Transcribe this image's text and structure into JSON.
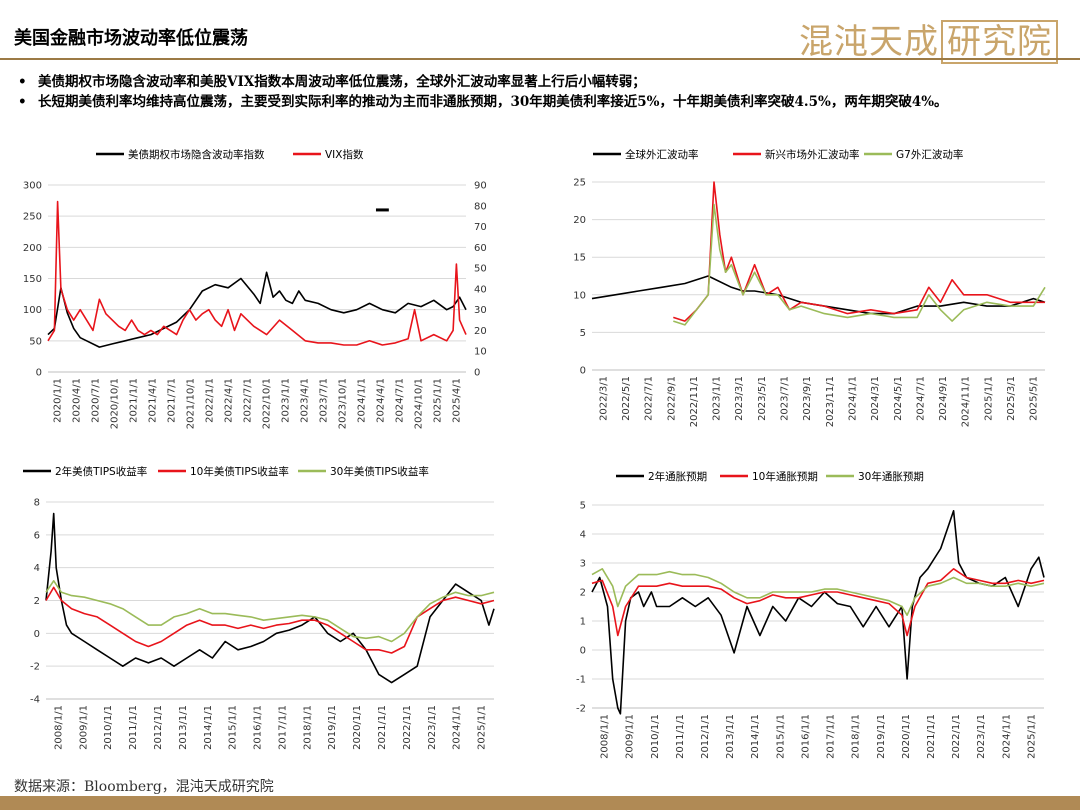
{
  "header": {
    "title": "美国金融市场波动率低位震荡",
    "logo_text": "混沌天成",
    "logo_box_text": "研究院"
  },
  "bullets": [
    "美债期权市场隐含波动率和美股VIX指数本周波动率低位震荡，全球外汇波动率显著上行后小幅转弱；",
    "长短期美债利率均维持高位震荡，主要受到实际利率的推动为主而非通胀预期，30年期美债利率接近5%，十年期美债利率突破4.5%，两年期突破4%。"
  ],
  "source": "数据来源：Bloomberg，混沌天成研究院",
  "colors": {
    "black": "#000000",
    "red": "#e8141b",
    "green": "#9bbb59",
    "gold": "#b08a55"
  },
  "chart_data": [
    {
      "type": "line",
      "id": "vol",
      "x_ticks": [
        "2020/1/1",
        "2020/4/1",
        "2020/7/1",
        "2020/10/1",
        "2021/1/1",
        "2021/4/1",
        "2021/7/1",
        "2021/10/1",
        "2022/1/1",
        "2022/4/1",
        "2022/7/1",
        "2022/10/1",
        "2023/1/1",
        "2023/4/1",
        "2023/7/1",
        "2023/10/1",
        "2024/1/1",
        "2024/4/1",
        "2024/7/1",
        "2024/10/1",
        "2025/1/1",
        "2025/4/1"
      ],
      "x_range": [
        0,
        65
      ],
      "ylim_left": [
        0,
        300
      ],
      "yticks_left": [
        0,
        50,
        100,
        150,
        200,
        250,
        300
      ],
      "ylim_right": [
        0,
        90
      ],
      "yticks_right": [
        0,
        10,
        20,
        30,
        40,
        50,
        60,
        70,
        80,
        90
      ],
      "series": [
        {
          "name": "美债期权市场隐含波动率指数",
          "color": "#000000",
          "axis": "left",
          "x": [
            0,
            1,
            2,
            3,
            4,
            5,
            6,
            8,
            10,
            12,
            14,
            16,
            18,
            20,
            22,
            24,
            26,
            28,
            30,
            32,
            33,
            34,
            35,
            36,
            37,
            38,
            39,
            40,
            42,
            44,
            46,
            48,
            50,
            52,
            54,
            56,
            58,
            60,
            62,
            63,
            64,
            65
          ],
          "y": [
            60,
            70,
            135,
            95,
            70,
            55,
            50,
            40,
            45,
            50,
            55,
            60,
            70,
            80,
            100,
            130,
            140,
            135,
            150,
            125,
            110,
            160,
            120,
            130,
            115,
            110,
            130,
            115,
            110,
            100,
            95,
            100,
            110,
            100,
            95,
            110,
            105,
            115,
            100,
            105,
            120,
            100
          ]
        },
        {
          "name": "VIX指数",
          "color": "#e8141b",
          "axis": "right",
          "x": [
            0,
            1,
            1.5,
            2,
            3,
            4,
            5,
            6,
            7,
            8,
            9,
            10,
            11,
            12,
            13,
            14,
            15,
            16,
            17,
            18,
            19,
            20,
            21,
            22,
            23,
            24,
            25,
            26,
            27,
            28,
            29,
            30,
            32,
            34,
            36,
            38,
            40,
            42,
            44,
            46,
            48,
            50,
            52,
            54,
            56,
            57,
            58,
            60,
            62,
            63,
            63.5,
            64,
            65
          ],
          "y": [
            15,
            20,
            82,
            40,
            30,
            25,
            30,
            25,
            20,
            35,
            28,
            25,
            22,
            20,
            25,
            20,
            18,
            20,
            18,
            22,
            20,
            18,
            25,
            30,
            25,
            28,
            30,
            25,
            22,
            30,
            20,
            28,
            22,
            18,
            25,
            20,
            15,
            14,
            14,
            13,
            13,
            15,
            13,
            14,
            16,
            30,
            15,
            18,
            15,
            20,
            52,
            25,
            18
          ]
        }
      ],
      "annotations": [
        {
          "type": "segment",
          "x": [
            51,
            53
          ],
          "y_right": 78,
          "color": "#000000"
        }
      ]
    },
    {
      "type": "line",
      "id": "fx",
      "x_ticks": [
        "2022/3/1",
        "2022/5/1",
        "2022/7/1",
        "2022/9/1",
        "2022/11/1",
        "2023/1/1",
        "2023/3/1",
        "2023/5/1",
        "2023/7/1",
        "2023/9/1",
        "2023/11/1",
        "2024/1/1",
        "2024/3/1",
        "2024/5/1",
        "2024/7/1",
        "2024/9/1",
        "2024/11/1",
        "2025/1/1",
        "2025/3/1",
        "2025/5/1"
      ],
      "x_range": [
        0,
        39
      ],
      "ylim": [
        0,
        25
      ],
      "yticks": [
        0,
        5,
        10,
        15,
        20,
        25
      ],
      "series": [
        {
          "name": "全球外汇波动率",
          "color": "#000000",
          "x": [
            0,
            2,
            4,
            6,
            8,
            10,
            12,
            13,
            14,
            16,
            18,
            20,
            22,
            24,
            26,
            28,
            30,
            32,
            34,
            36,
            38,
            39
          ],
          "y": [
            9.5,
            10,
            10.5,
            11,
            11.5,
            12.5,
            11,
            10.5,
            10.5,
            10,
            9,
            8.5,
            8,
            7.5,
            7.5,
            8.5,
            8.5,
            9,
            8.5,
            8.5,
            9.5,
            9
          ]
        },
        {
          "name": "新兴市场外汇波动率",
          "color": "#e8141b",
          "x": [
            7,
            8,
            9,
            10,
            10.5,
            11,
            11.5,
            12,
            13,
            14,
            15,
            16,
            17,
            18,
            20,
            22,
            24,
            26,
            28,
            29,
            30,
            31,
            32,
            34,
            36,
            38,
            39
          ],
          "y": [
            7,
            6.5,
            8,
            10,
            25,
            18,
            13,
            15,
            10,
            14,
            10,
            11,
            8,
            9,
            8.5,
            7.5,
            8,
            7.5,
            8,
            11,
            9,
            12,
            10,
            10,
            9,
            9,
            9
          ]
        },
        {
          "name": "G7外汇波动率",
          "color": "#9bbb59",
          "x": [
            7,
            8,
            9,
            10,
            10.5,
            11,
            11.5,
            12,
            13,
            14,
            15,
            16,
            17,
            18,
            20,
            22,
            24,
            26,
            28,
            29,
            30,
            31,
            32,
            34,
            36,
            38,
            39
          ],
          "y": [
            6.5,
            6,
            8,
            10,
            22,
            16,
            13,
            14,
            10,
            13,
            10,
            10,
            8,
            8.5,
            7.5,
            7,
            7.5,
            7,
            7,
            10,
            8,
            6.5,
            8,
            9,
            8.5,
            8.5,
            11
          ]
        }
      ]
    },
    {
      "type": "line",
      "id": "tips",
      "x_ticks": [
        "2008/1/1",
        "2009/1/1",
        "2010/1/1",
        "2011/1/1",
        "2012/1/1",
        "2013/1/1",
        "2014/1/1",
        "2015/1/1",
        "2016/1/1",
        "2017/1/1",
        "2018/1/1",
        "2019/1/1",
        "2020/1/1",
        "2021/1/1",
        "2022/1/1",
        "2023/1/1",
        "2024/1/1",
        "2025/1/1"
      ],
      "x_range": [
        0,
        17.5
      ],
      "ylim": [
        -4,
        8
      ],
      "yticks": [
        -4,
        -2,
        0,
        2,
        4,
        6,
        8
      ],
      "series": [
        {
          "name": "2年美债TIPS收益率",
          "color": "#000000",
          "x": [
            0,
            0.2,
            0.3,
            0.4,
            0.6,
            0.8,
            1,
            1.5,
            2,
            2.5,
            3,
            3.5,
            4,
            4.5,
            5,
            5.5,
            6,
            6.5,
            7,
            7.5,
            8,
            8.5,
            9,
            9.5,
            10,
            10.5,
            11,
            11.5,
            12,
            12.5,
            13,
            13.5,
            14,
            14.5,
            15,
            15.5,
            16,
            16.5,
            17,
            17.3,
            17.5
          ],
          "y": [
            2,
            5,
            7.3,
            4,
            2,
            0.5,
            0,
            -0.5,
            -1,
            -1.5,
            -2,
            -1.5,
            -1.8,
            -1.5,
            -2,
            -1.5,
            -1,
            -1.5,
            -0.5,
            -1,
            -0.8,
            -0.5,
            0,
            0.2,
            0.5,
            1,
            0,
            -0.5,
            0,
            -1,
            -2.5,
            -3,
            -2.5,
            -2,
            1,
            2,
            3,
            2.5,
            2,
            0.5,
            1.5
          ]
        },
        {
          "name": "10年美债TIPS收益率",
          "color": "#e8141b",
          "x": [
            0,
            0.3,
            0.6,
            1,
            1.5,
            2,
            2.5,
            3,
            3.5,
            4,
            4.5,
            5,
            5.5,
            6,
            6.5,
            7,
            7.5,
            8,
            8.5,
            9,
            9.5,
            10,
            10.5,
            11,
            11.5,
            12,
            12.5,
            13,
            13.5,
            14,
            14.5,
            15,
            15.5,
            16,
            16.5,
            17,
            17.5
          ],
          "y": [
            2,
            2.8,
            2,
            1.5,
            1.2,
            1,
            0.5,
            0,
            -0.5,
            -0.8,
            -0.5,
            0,
            0.5,
            0.8,
            0.5,
            0.5,
            0.3,
            0.5,
            0.3,
            0.5,
            0.6,
            0.8,
            0.8,
            0.5,
            0,
            -0.5,
            -1,
            -1,
            -1.2,
            -0.8,
            1,
            1.5,
            2,
            2.2,
            2,
            1.8,
            2
          ]
        },
        {
          "name": "30年美债TIPS收益率",
          "color": "#9bbb59",
          "x": [
            0,
            0.3,
            0.6,
            1,
            1.5,
            2,
            2.5,
            3,
            3.5,
            4,
            4.5,
            5,
            5.5,
            6,
            6.5,
            7,
            7.5,
            8,
            8.5,
            9,
            9.5,
            10,
            10.5,
            11,
            11.5,
            12,
            12.5,
            13,
            13.5,
            14,
            14.5,
            15,
            15.5,
            16,
            16.5,
            17,
            17.5
          ],
          "y": [
            2.5,
            3.2,
            2.5,
            2.3,
            2.2,
            2,
            1.8,
            1.5,
            1,
            0.5,
            0.5,
            1,
            1.2,
            1.5,
            1.2,
            1.2,
            1.1,
            1,
            0.8,
            0.9,
            1,
            1.1,
            1,
            0.8,
            0.3,
            -0.2,
            -0.3,
            -0.2,
            -0.5,
            0,
            1,
            1.8,
            2.2,
            2.5,
            2.3,
            2.3,
            2.5
          ]
        }
      ]
    },
    {
      "type": "line",
      "id": "inflation",
      "x_ticks": [
        "2008/1/1",
        "2009/1/1",
        "2010/1/1",
        "2011/1/1",
        "2012/1/1",
        "2013/1/1",
        "2014/1/1",
        "2015/1/1",
        "2016/1/1",
        "2017/1/1",
        "2018/1/1",
        "2019/1/1",
        "2020/1/1",
        "2021/1/1",
        "2022/1/1",
        "2023/1/1",
        "2024/1/1",
        "2025/1/1"
      ],
      "x_range": [
        0,
        17.5
      ],
      "ylim": [
        -2,
        5
      ],
      "yticks": [
        -2,
        -1,
        0,
        1,
        2,
        3,
        4,
        5
      ],
      "series": [
        {
          "name": "2年通胀预期",
          "color": "#000000",
          "x": [
            0,
            0.3,
            0.6,
            0.8,
            1,
            1.1,
            1.3,
            1.5,
            1.8,
            2,
            2.3,
            2.5,
            3,
            3.5,
            4,
            4.5,
            5,
            5.5,
            6,
            6.5,
            7,
            7.5,
            8,
            8.5,
            9,
            9.5,
            10,
            10.5,
            11,
            11.5,
            12,
            12.2,
            12.4,
            12.7,
            13,
            13.5,
            14,
            14.2,
            14.5,
            15,
            15.5,
            16,
            16.5,
            17,
            17.3,
            17.5
          ],
          "y": [
            2,
            2.5,
            1.5,
            -1,
            -2,
            -2.2,
            1,
            1.8,
            2,
            1.5,
            2,
            1.5,
            1.5,
            1.8,
            1.5,
            1.8,
            1.2,
            -0.1,
            1.5,
            0.5,
            1.5,
            1,
            1.8,
            1.5,
            2,
            1.6,
            1.5,
            0.8,
            1.5,
            0.8,
            1.5,
            -1,
            1.5,
            2.5,
            2.8,
            3.5,
            4.8,
            3,
            2.5,
            2.3,
            2.2,
            2.5,
            1.5,
            2.8,
            3.2,
            2.5
          ]
        },
        {
          "name": "10年通胀预期",
          "color": "#e8141b",
          "x": [
            0,
            0.4,
            0.8,
            1,
            1.3,
            1.8,
            2.5,
            3,
            3.5,
            4,
            4.5,
            5,
            5.5,
            6,
            6.5,
            7,
            7.5,
            8,
            8.5,
            9,
            9.5,
            10,
            10.5,
            11,
            11.5,
            12,
            12.2,
            12.5,
            13,
            13.5,
            14,
            14.5,
            15,
            15.5,
            16,
            16.5,
            17,
            17.5
          ],
          "y": [
            2.3,
            2.4,
            1.5,
            0.5,
            1.5,
            2.2,
            2.2,
            2.3,
            2.2,
            2.2,
            2.2,
            2.1,
            1.8,
            1.6,
            1.7,
            1.9,
            1.8,
            1.8,
            1.9,
            2,
            2,
            1.9,
            1.8,
            1.7,
            1.6,
            1.2,
            0.5,
            1.5,
            2.3,
            2.4,
            2.8,
            2.5,
            2.4,
            2.3,
            2.3,
            2.4,
            2.3,
            2.4
          ]
        },
        {
          "name": "30年通胀预期",
          "color": "#9bbb59",
          "x": [
            0,
            0.4,
            0.8,
            1,
            1.3,
            1.8,
            2.5,
            3,
            3.5,
            4,
            4.5,
            5,
            5.5,
            6,
            6.5,
            7,
            7.5,
            8,
            8.5,
            9,
            9.5,
            10,
            10.5,
            11,
            11.5,
            12,
            12.2,
            12.5,
            13,
            13.5,
            14,
            14.5,
            15,
            15.5,
            16,
            16.5,
            17,
            17.5
          ],
          "y": [
            2.6,
            2.8,
            2.2,
            1.5,
            2.2,
            2.6,
            2.6,
            2.7,
            2.6,
            2.6,
            2.5,
            2.3,
            2,
            1.8,
            1.8,
            2,
            2,
            2,
            2,
            2.1,
            2.1,
            2,
            1.9,
            1.8,
            1.7,
            1.5,
            1.2,
            1.8,
            2.2,
            2.3,
            2.5,
            2.3,
            2.3,
            2.2,
            2.2,
            2.3,
            2.2,
            2.3
          ]
        }
      ]
    }
  ]
}
